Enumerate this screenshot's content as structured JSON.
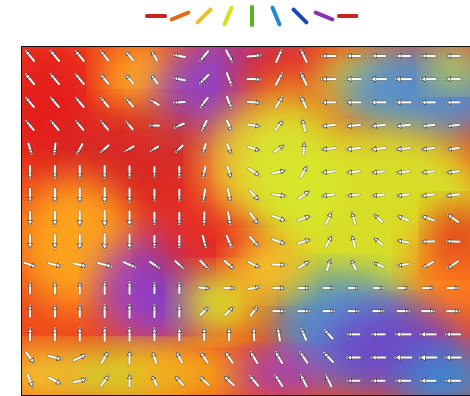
{
  "figure": {
    "legend": {
      "description": "orientation key",
      "colors": [
        "#cc2222",
        "#e36b16",
        "#f0c11e",
        "#d5e21d",
        "#5ab51f",
        "#1f8bd1",
        "#1948b1",
        "#8a2eb3",
        "#cc2222"
      ],
      "angles_deg": [
        0,
        22.5,
        45,
        67.5,
        90,
        112.5,
        135,
        157.5,
        180
      ]
    },
    "vector_field": {
      "icon": "arrow-icon",
      "background_palette": [
        "#e51f1f",
        "#ff7a1a",
        "#f8d12e",
        "#d8ea2b",
        "#9bd83a",
        "#3d8bd8",
        "#6b46c9",
        "#a641c8",
        "#e51f1f"
      ]
    }
  }
}
